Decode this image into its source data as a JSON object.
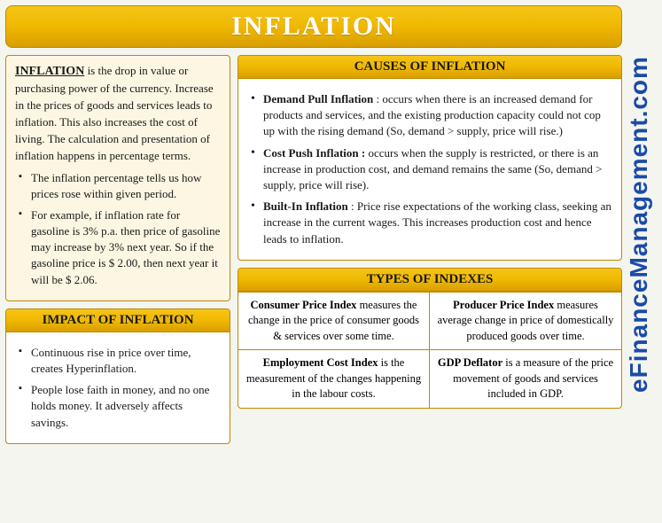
{
  "title": "INFLATION",
  "watermark": "eFinanceManagement.com",
  "intro": {
    "term": "INFLATION",
    "definition": " is the drop in value or purchasing power of the currency. Increase in the prices of goods and services leads to inflation. This also increases the cost of living. The calculation and presentation of inflation happens in percentage terms.",
    "points": [
      "The inflation percentage tells us how prices rose within given period.",
      "For example, if inflation rate for gasoline is 3% p.a. then price of gasoline may increase by 3% next year. So if the gasoline price is $ 2.00, then next year it will be $ 2.06."
    ]
  },
  "impact": {
    "heading": "IMPACT OF INFLATION",
    "points": [
      "Continuous rise in price over time, creates Hyperinflation.",
      "People lose faith in money, and no one holds money. It adversely affects savings."
    ]
  },
  "causes": {
    "heading": "CAUSES OF INFLATION",
    "items": [
      {
        "term": "Demand Pull Inflation",
        "desc": " : occurs when there is an increased demand for products and services, and the existing production capacity could not cop up with the rising demand (So, demand > supply, price will rise.)"
      },
      {
        "term": "Cost Push Inflation :",
        "desc": " occurs when the supply is restricted, or there is an increase in production cost, and demand remains the same (So, demand > supply, price will rise)."
      },
      {
        "term": "Built-In Inflation",
        "desc": " : Price rise expectations of the working class, seeking an increase in the current wages. This increases production cost and hence leads to inflation."
      }
    ]
  },
  "indexes": {
    "heading": "TYPES OF INDEXES",
    "items": [
      {
        "term": "Consumer Price Index",
        "desc": " measures the change in the price of consumer goods & services over some time."
      },
      {
        "term": "Producer Price Index",
        "desc": " measures average change in price of domestically produced goods over time."
      },
      {
        "term": "Employment Cost Index",
        "desc": " is the measurement of the changes happening in the labour costs."
      },
      {
        "term": "GDP Deflator",
        "desc": " is a measure of the price movement of goods and services included in GDP."
      }
    ]
  },
  "colors": {
    "banner_gradient_top": "#f5c518",
    "banner_gradient_bottom": "#d89e00",
    "border": "#c08800",
    "intro_bg": "#fdf6e3",
    "watermark_color": "#1a4ba8",
    "text": "#1a1a1a"
  }
}
